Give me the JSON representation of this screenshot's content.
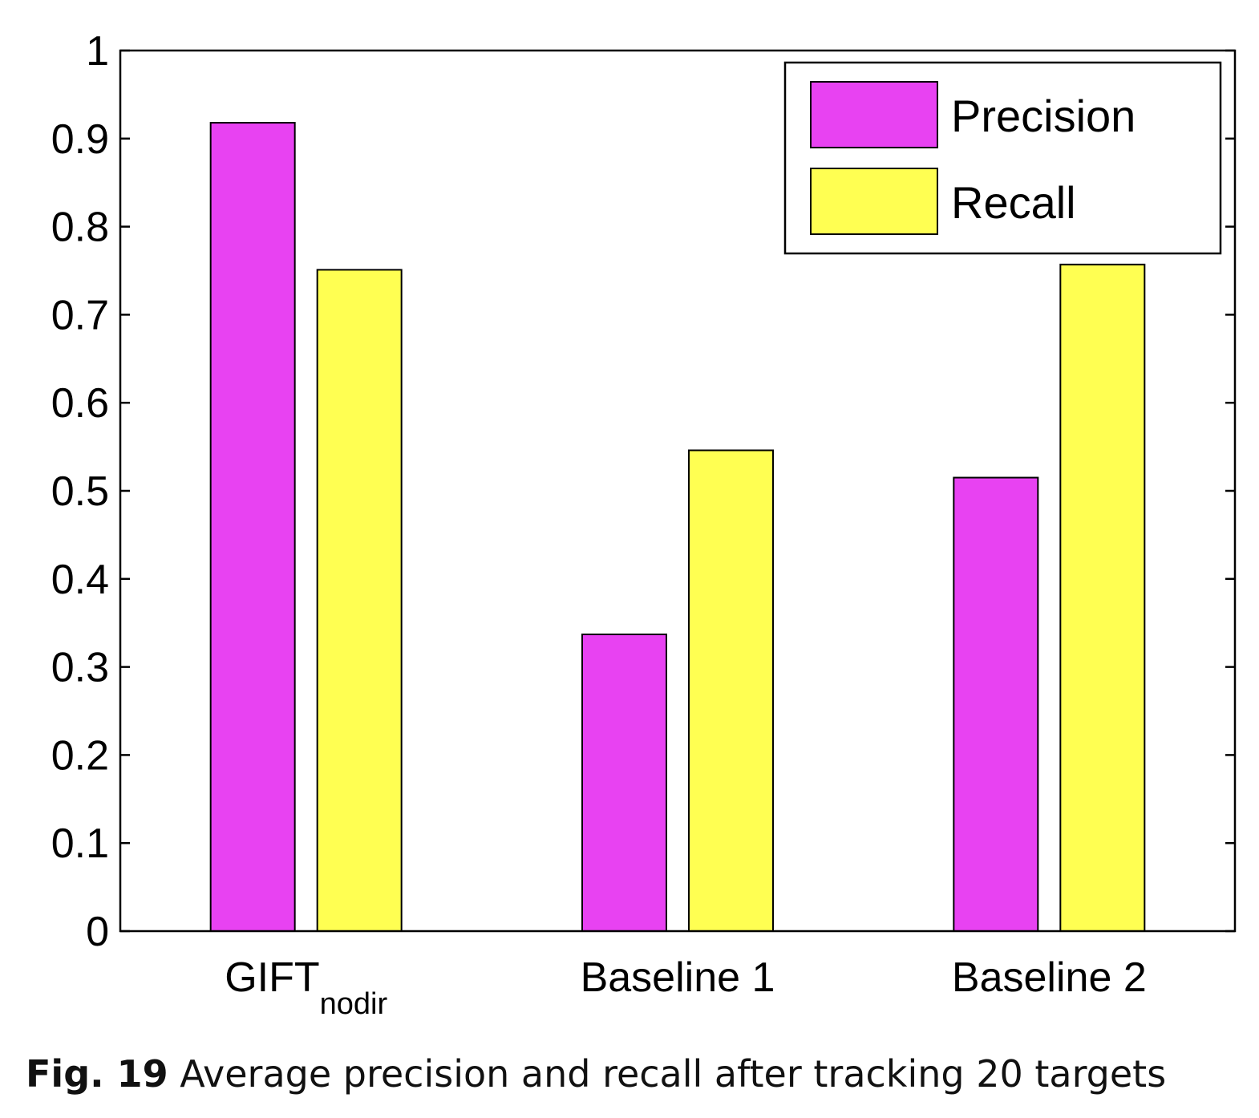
{
  "chart_data": {
    "type": "bar",
    "categories": [
      {
        "main": "GIFT",
        "sub": "nodir"
      },
      {
        "main": "Baseline 1",
        "sub": ""
      },
      {
        "main": "Baseline 2",
        "sub": ""
      }
    ],
    "series": [
      {
        "name": "Precision",
        "color": "#e842f2",
        "values": [
          0.918,
          0.337,
          0.515
        ]
      },
      {
        "name": "Recall",
        "color": "#ffff52",
        "values": [
          0.751,
          0.546,
          0.757
        ]
      }
    ],
    "ylim": [
      0,
      1
    ],
    "yticks": [
      0,
      0.1,
      0.2,
      0.3,
      0.4,
      0.5,
      0.6,
      0.7,
      0.8,
      0.9,
      1
    ],
    "ytick_labels": [
      "0",
      "0.1",
      "0.2",
      "0.3",
      "0.4",
      "0.5",
      "0.6",
      "0.7",
      "0.8",
      "0.9",
      "1"
    ],
    "legend_position": "top-right",
    "grid": false
  },
  "caption": {
    "label": "Fig. 19",
    "text": " Average precision and recall after tracking 20 targets"
  }
}
